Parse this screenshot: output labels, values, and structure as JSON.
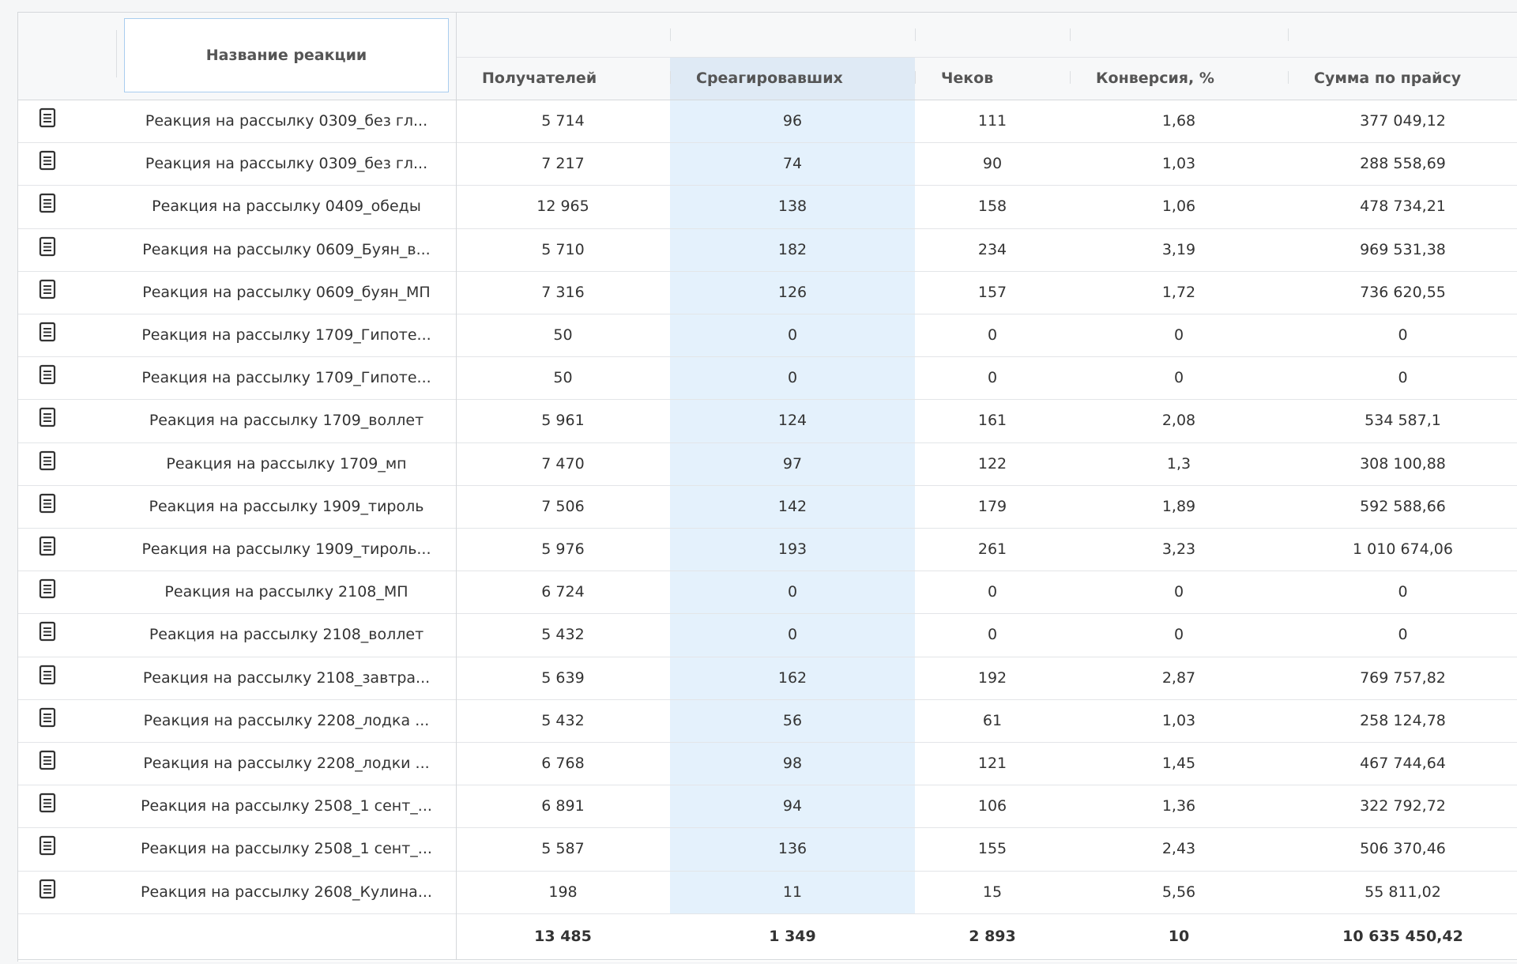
{
  "table": {
    "header": {
      "name": "Название реакции",
      "columns": [
        "Получателей",
        "Среагировавших",
        "Чеков",
        "Конверсия, %",
        "Сумма по прайсу"
      ]
    },
    "rows": [
      [
        "Реакция на рассылку 0309_без гл...",
        "5 714",
        "96",
        "111",
        "1,68",
        "377 049,12"
      ],
      [
        "Реакция на рассылку 0309_без гл...",
        "7 217",
        "74",
        "90",
        "1,03",
        "288 558,69"
      ],
      [
        "Реакция на рассылку 0409_обеды",
        "12 965",
        "138",
        "158",
        "1,06",
        "478 734,21"
      ],
      [
        "Реакция на рассылку 0609_Буян_в...",
        "5 710",
        "182",
        "234",
        "3,19",
        "969 531,38"
      ],
      [
        "Реакция на рассылку 0609_буян_МП",
        "7 316",
        "126",
        "157",
        "1,72",
        "736 620,55"
      ],
      [
        "Реакция на рассылку 1709_Гипоте...",
        "50",
        "0",
        "0",
        "0",
        "0"
      ],
      [
        "Реакция на рассылку 1709_Гипоте...",
        "50",
        "0",
        "0",
        "0",
        "0"
      ],
      [
        "Реакция на рассылку 1709_воллет",
        "5 961",
        "124",
        "161",
        "2,08",
        "534 587,1"
      ],
      [
        "Реакция на рассылку 1709_мп",
        "7 470",
        "97",
        "122",
        "1,3",
        "308 100,88"
      ],
      [
        "Реакция на рассылку 1909_тироль",
        "7 506",
        "142",
        "179",
        "1,89",
        "592 588,66"
      ],
      [
        "Реакция на рассылку 1909_тироль...",
        "5 976",
        "193",
        "261",
        "3,23",
        "1 010 674,06"
      ],
      [
        "Реакция на рассылку 2108_МП",
        "6 724",
        "0",
        "0",
        "0",
        "0"
      ],
      [
        "Реакция на рассылку 2108_воллет",
        "5 432",
        "0",
        "0",
        "0",
        "0"
      ],
      [
        "Реакция на рассылку 2108_завтра...",
        "5 639",
        "162",
        "192",
        "2,87",
        "769 757,82"
      ],
      [
        "Реакция на рассылку 2208_лодка ...",
        "5 432",
        "56",
        "61",
        "1,03",
        "258 124,78"
      ],
      [
        "Реакция на рассылку 2208_лодки ...",
        "6 768",
        "98",
        "121",
        "1,45",
        "467 744,64"
      ],
      [
        "Реакция на рассылку 2508_1 сент_...",
        "6 891",
        "94",
        "106",
        "1,36",
        "322 792,72"
      ],
      [
        "Реакция на рассылку 2508_1 сент_...",
        "5 587",
        "136",
        "155",
        "2,43",
        "506 370,46"
      ],
      [
        "Реакция на рассылку 2608_Кулина...",
        "198",
        "11",
        "15",
        "5,56",
        "55 811,02"
      ]
    ],
    "totals": [
      "13 485",
      "1 349",
      "2 893",
      "10",
      "10 635 450,42"
    ]
  }
}
